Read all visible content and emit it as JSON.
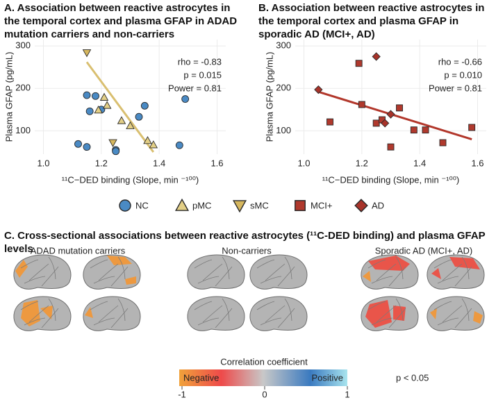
{
  "chart_data": [
    {
      "type": "scatter",
      "title": "A. Association between reactive astrocytes in the temporal cortex and plasma GFAP in ADAD mutation carriers and non-carriers",
      "xlabel": "¹¹C−DED binding (Slope, min ⁻¹⁰⁰)",
      "ylabel": "Plasma GFAP (pg/mL)",
      "xlim": [
        0.97,
        1.63
      ],
      "ylim": [
        45,
        315
      ],
      "xticks": [
        {
          "value": 1,
          "label": "1.0"
        },
        1.2,
        1.4,
        1.6
      ],
      "yticks": [
        100,
        200,
        300
      ],
      "grid": true,
      "annotations": [
        "rho = -0.83",
        "p = 0.015",
        "Power = 0.81"
      ],
      "series": [
        {
          "name": "NC",
          "color": "#4a8ac4",
          "marker": "circle",
          "x": [
            1.12,
            1.15,
            1.15,
            1.16,
            1.18,
            1.2,
            1.33,
            1.35,
            1.25,
            1.25,
            1.47,
            1.49
          ],
          "y": [
            69,
            62,
            184,
            146,
            182,
            150,
            133,
            159,
            55,
            52,
            66,
            175
          ]
        },
        {
          "name": "pMC",
          "color": "#e3cf86",
          "marker": "triangle-up",
          "x": [
            1.21,
            1.19,
            1.22,
            1.27,
            1.3,
            1.36,
            1.38
          ],
          "y": [
            179,
            149,
            160,
            124,
            112,
            77,
            67
          ]
        },
        {
          "name": "sMC",
          "color": "#d6b75e",
          "marker": "triangle-down",
          "x": [
            1.15,
            1.24
          ],
          "y": [
            284,
            72
          ]
        }
      ],
      "trend": {
        "color": "#d9bf70",
        "x": [
          1.15,
          1.38
        ],
        "y": [
          262,
          50
        ]
      }
    },
    {
      "type": "scatter",
      "title": "B. Association between reactive astrocytes in the temporal cortex and plasma GFAP in sporadic AD (MCI+, AD)",
      "xlabel": "¹¹C−DED binding (Slope, min ⁻¹⁰⁰)",
      "ylabel": "Plasma GFAP (pg/mL)",
      "xlim": [
        0.97,
        1.63
      ],
      "ylim": [
        45,
        315
      ],
      "xticks": [
        {
          "value": 1,
          "label": "1.0"
        },
        1.2,
        1.4,
        1.6
      ],
      "yticks": [
        100,
        200,
        300
      ],
      "grid": true,
      "annotations": [
        "rho = -0.66",
        "p = 0.010",
        "Power = 0.81"
      ],
      "series": [
        {
          "name": "MCI+",
          "color": "#b0392d",
          "marker": "square",
          "x": [
            1.09,
            1.19,
            1.2,
            1.25,
            1.27,
            1.33,
            1.3,
            1.38,
            1.42,
            1.48,
            1.58
          ],
          "y": [
            121,
            259,
            162,
            118,
            126,
            154,
            62,
            102,
            102,
            72,
            108
          ]
        },
        {
          "name": "AD",
          "color": "#a8332a",
          "marker": "diamond",
          "x": [
            1.05,
            1.25,
            1.28,
            1.3
          ],
          "y": [
            197,
            275,
            118,
            139
          ]
        }
      ],
      "trend": {
        "color": "#b2372b",
        "x": [
          1.05,
          1.58
        ],
        "y": [
          192,
          80
        ]
      }
    }
  ],
  "panel_c": {
    "title": "C. Cross-sectional associations between reactive astrocytes (¹¹C-DED binding) and plasma GFAP levels",
    "groups": [
      "ADAD mutation carriers",
      "Non-carriers",
      "Sporadic AD (MCI+, AD)"
    ],
    "colorbar": {
      "title": "Correlation coefficient",
      "low_label": "Negative",
      "high_label": "Positive",
      "lim": [
        -1,
        1
      ],
      "ticks": [
        -1,
        0,
        1
      ]
    },
    "note": "p < 0.05"
  }
}
